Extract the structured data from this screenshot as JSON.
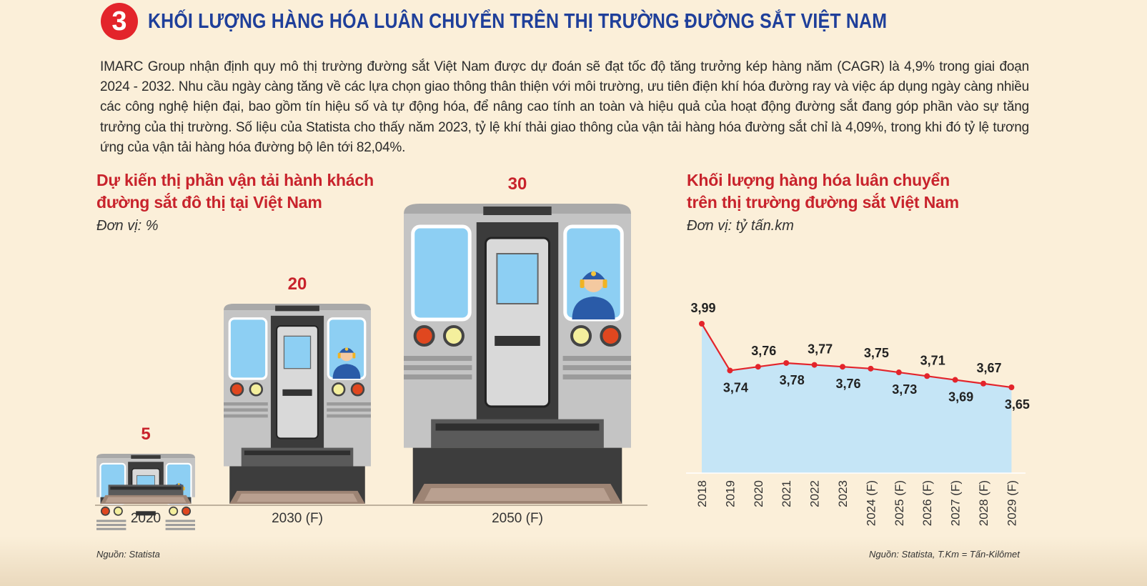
{
  "header": {
    "number": "3",
    "title": "KHỐI LƯỢNG HÀNG HÓA LUÂN CHUYỂN TRÊN THỊ TRƯỜNG ĐƯỜNG SẮT VIỆT NAM"
  },
  "intro": "IMARC Group nhận định quy mô thị trường đường sắt Việt Nam được dự đoán sẽ đạt tốc độ tăng trưởng kép hàng năm (CAGR) là 4,9% trong giai đoạn 2024 - 2032. Nhu cầu ngày càng tăng về các lựa chọn giao thông thân thiện với môi trường, ưu tiên điện khí hóa đường ray và việc áp dụng ngày càng nhiều các công nghệ hiện đại, bao gồm tín hiệu số và tự động hóa, để nâng cao tính an toàn và hiệu quả của hoạt động đường sắt đang góp phần vào sự tăng trưởng của thị trường. Số liệu của Statista cho thấy năm 2023, tỷ lệ khí thải giao thông của vận tải hàng hóa đường sắt chỉ là 4,09%, trong khi đó tỷ lệ tương ứng của vận tải hàng hóa đường bộ lên tới 82,04%.",
  "left_chart": {
    "title_line1": "Dự kiến thị phần vận tải hành khách",
    "title_line2": "đường sắt đô thị tại Việt Nam",
    "unit": "Đơn vị: %",
    "source": "Nguồn: Statista"
  },
  "right_chart": {
    "title_line1": "Khối lượng hàng hóa luân chuyển",
    "title_line2": "trên thị trường đường sắt Việt Nam",
    "unit": "Đơn vị: tỷ tấn.km",
    "source": "Nguồn: Statista, T.Km = Tấn-Kilômet"
  },
  "colors": {
    "title_blue": "#1f3f9a",
    "accent_red": "#c8232c",
    "area_fill": "#c5e5f6",
    "train_body": "#bdbdbd",
    "window_blue": "#8dcff3"
  },
  "chart_data": [
    {
      "type": "bar",
      "categories": [
        "2020",
        "2030 (F)",
        "2050 (F)"
      ],
      "values": [
        5,
        20,
        30
      ],
      "value_labels": [
        "5",
        "20",
        "30"
      ],
      "title": "Dự kiến thị phần vận tải hành khách đường sắt đô thị tại Việt Nam",
      "unit": "%"
    },
    {
      "type": "area",
      "categories": [
        "2018",
        "2019",
        "2020",
        "2021",
        "2022",
        "2023",
        "2024 (F)",
        "2025 (F)",
        "2026 (F)",
        "2027 (F)",
        "2028 (F)",
        "2029 (F)"
      ],
      "values": [
        3.99,
        3.74,
        3.76,
        3.78,
        3.77,
        3.76,
        3.75,
        3.73,
        3.71,
        3.69,
        3.67,
        3.65
      ],
      "value_labels": [
        "3,99",
        "3,74",
        "3,76",
        "3,78",
        "3,77",
        "3,76",
        "3,75",
        "3,73",
        "3,71",
        "3,69",
        "3,67",
        "3,65"
      ],
      "title": "Khối lượng hàng hóa luân chuyển trên thị trường đường sắt Việt Nam",
      "unit": "tỷ tấn.km"
    }
  ]
}
